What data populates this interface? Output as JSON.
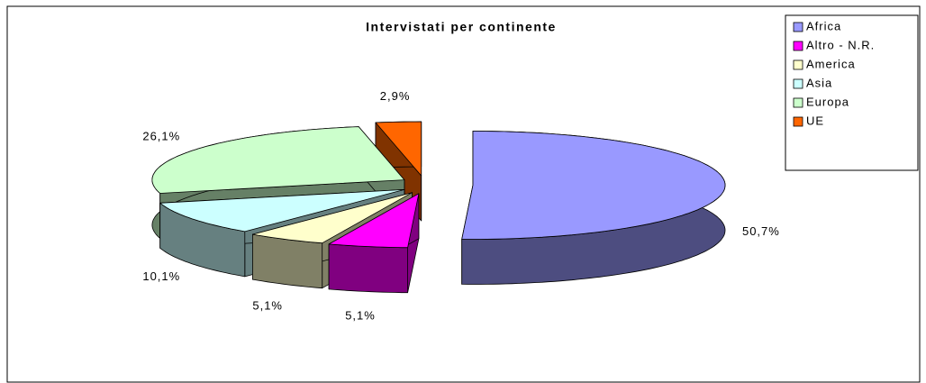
{
  "chart_data": {
    "type": "pie",
    "title": "Intervistati per continente",
    "categories": [
      "Africa",
      "Altro - N.R.",
      "America",
      "Asia",
      "Europa",
      "UE"
    ],
    "values": [
      50.7,
      5.1,
      5.1,
      10.1,
      26.1,
      2.9
    ],
    "value_labels": [
      "50,7%",
      "5,1%",
      "5,1%",
      "10,1%",
      "26,1%",
      "2,9%"
    ],
    "colors": [
      "#9999ff",
      "#ff00ff",
      "#ffffcc",
      "#ccffff",
      "#ccffcc",
      "#ff6600"
    ],
    "legend": "right"
  }
}
